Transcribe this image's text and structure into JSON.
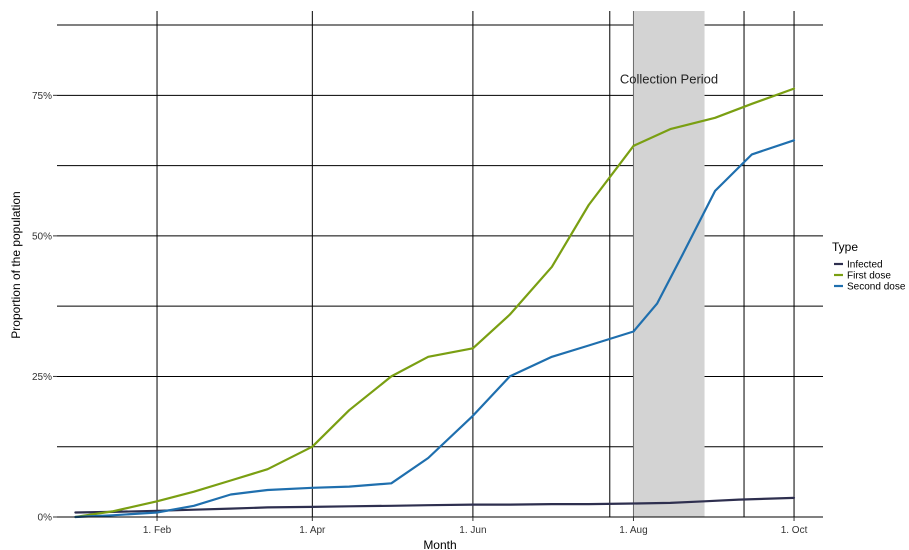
{
  "chart_data": {
    "type": "line",
    "title": "",
    "xlabel": "Month",
    "ylabel": "Proportion of the population",
    "x_ticks": [
      {
        "date": "2021-02-01",
        "label": "1. Feb"
      },
      {
        "date": "2021-04-01",
        "label": "1. Apr"
      },
      {
        "date": "2021-06-01",
        "label": "1. Jun"
      },
      {
        "date": "2021-08-01",
        "label": "1. Aug"
      },
      {
        "date": "2021-10-01",
        "label": "1. Oct"
      }
    ],
    "x_minor_ticks": [
      "2021-07-23",
      "2021-09-12"
    ],
    "y_ticks": [
      {
        "value": 0,
        "label": "0%"
      },
      {
        "value": 25,
        "label": "25%"
      },
      {
        "value": 50,
        "label": "50%"
      },
      {
        "value": 75,
        "label": "75%"
      }
    ],
    "y_minor_ticks": [
      12.5,
      37.5,
      62.5,
      87.5
    ],
    "xlim": [
      "2020-12-25",
      "2021-10-12"
    ],
    "ylim": [
      0,
      90
    ],
    "grid": true,
    "legend": {
      "title": "Type",
      "position": "right"
    },
    "annotation": {
      "text": "Collection Period",
      "x_start": "2021-08-01",
      "x_end": "2021-08-28",
      "y": 78,
      "fill": "#d3d3d3"
    },
    "series": [
      {
        "name": "Infected",
        "color": "#2e2f4f",
        "points": [
          [
            "2021-01-01",
            0.8
          ],
          [
            "2021-01-15",
            0.9
          ],
          [
            "2021-02-01",
            1.1
          ],
          [
            "2021-02-15",
            1.3
          ],
          [
            "2021-03-01",
            1.5
          ],
          [
            "2021-03-15",
            1.7
          ],
          [
            "2021-04-01",
            1.8
          ],
          [
            "2021-04-15",
            1.9
          ],
          [
            "2021-05-01",
            2.0
          ],
          [
            "2021-05-15",
            2.1
          ],
          [
            "2021-06-01",
            2.2
          ],
          [
            "2021-06-15",
            2.2
          ],
          [
            "2021-07-01",
            2.3
          ],
          [
            "2021-07-15",
            2.3
          ],
          [
            "2021-08-01",
            2.4
          ],
          [
            "2021-08-15",
            2.5
          ],
          [
            "2021-08-28",
            2.8
          ],
          [
            "2021-09-10",
            3.1
          ],
          [
            "2021-10-01",
            3.4
          ]
        ]
      },
      {
        "name": "First dose",
        "color": "#7a9f12",
        "points": [
          [
            "2021-01-01",
            0.0
          ],
          [
            "2021-01-15",
            1.0
          ],
          [
            "2021-02-01",
            2.8
          ],
          [
            "2021-02-15",
            4.5
          ],
          [
            "2021-03-01",
            6.5
          ],
          [
            "2021-03-15",
            8.5
          ],
          [
            "2021-04-01",
            12.5
          ],
          [
            "2021-04-15",
            19.0
          ],
          [
            "2021-05-01",
            25.0
          ],
          [
            "2021-05-15",
            28.5
          ],
          [
            "2021-06-01",
            30.0
          ],
          [
            "2021-06-15",
            36.0
          ],
          [
            "2021-07-01",
            44.5
          ],
          [
            "2021-07-15",
            55.5
          ],
          [
            "2021-08-01",
            66.0
          ],
          [
            "2021-08-15",
            69.0
          ],
          [
            "2021-09-01",
            71.0
          ],
          [
            "2021-09-15",
            73.5
          ],
          [
            "2021-10-01",
            76.2
          ]
        ]
      },
      {
        "name": "Second dose",
        "color": "#1f6fae",
        "points": [
          [
            "2021-01-01",
            0.0
          ],
          [
            "2021-01-15",
            0.3
          ],
          [
            "2021-02-01",
            0.8
          ],
          [
            "2021-02-15",
            2.0
          ],
          [
            "2021-03-01",
            4.0
          ],
          [
            "2021-03-15",
            4.8
          ],
          [
            "2021-04-01",
            5.2
          ],
          [
            "2021-04-15",
            5.4
          ],
          [
            "2021-05-01",
            6.0
          ],
          [
            "2021-05-15",
            10.5
          ],
          [
            "2021-06-01",
            18.0
          ],
          [
            "2021-06-15",
            25.0
          ],
          [
            "2021-07-01",
            28.5
          ],
          [
            "2021-07-15",
            30.5
          ],
          [
            "2021-08-01",
            33.0
          ],
          [
            "2021-08-10",
            38.0
          ],
          [
            "2021-08-20",
            47.0
          ],
          [
            "2021-09-01",
            58.0
          ],
          [
            "2021-09-15",
            64.5
          ],
          [
            "2021-10-01",
            67.0
          ]
        ]
      }
    ]
  }
}
